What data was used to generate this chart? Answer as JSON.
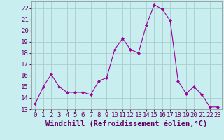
{
  "x": [
    0,
    1,
    2,
    3,
    4,
    5,
    6,
    7,
    8,
    9,
    10,
    11,
    12,
    13,
    14,
    15,
    16,
    17,
    18,
    19,
    20,
    21,
    22,
    23
  ],
  "y": [
    13.5,
    15.0,
    16.1,
    15.0,
    14.5,
    14.5,
    14.5,
    14.3,
    15.5,
    15.8,
    18.3,
    19.3,
    18.3,
    18.0,
    20.5,
    22.3,
    21.9,
    20.9,
    15.5,
    14.4,
    15.0,
    14.3,
    13.2,
    13.2
  ],
  "line_color": "#990099",
  "marker": "D",
  "marker_size": 2,
  "bg_color": "#c8eef0",
  "grid_color": "#aacccc",
  "xlabel": "Windchill (Refroidissement éolien,°C)",
  "xlim": [
    -0.5,
    23.5
  ],
  "ylim": [
    13,
    22.6
  ],
  "yticks": [
    13,
    14,
    15,
    16,
    17,
    18,
    19,
    20,
    21,
    22
  ],
  "xticks": [
    0,
    1,
    2,
    3,
    4,
    5,
    6,
    7,
    8,
    9,
    10,
    11,
    12,
    13,
    14,
    15,
    16,
    17,
    18,
    19,
    20,
    21,
    22,
    23
  ],
  "tick_label_size": 6.5,
  "xlabel_size": 7.5
}
